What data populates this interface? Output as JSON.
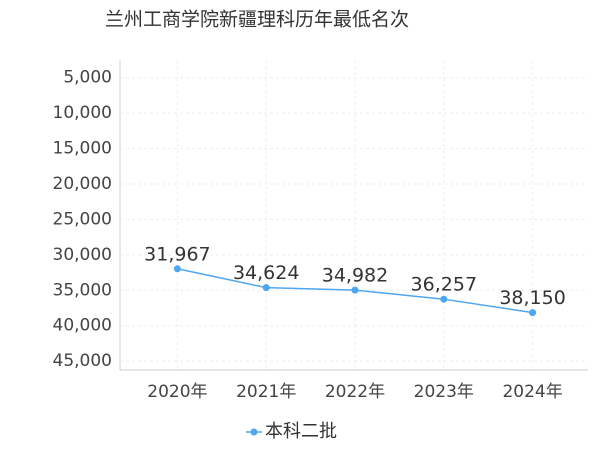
{
  "chart_data": {
    "type": "line",
    "title": "兰州工商学院新疆理科历年最低名次",
    "categories": [
      "2020年",
      "2021年",
      "2022年",
      "2023年",
      "2024年"
    ],
    "series": [
      {
        "name": "本科二批",
        "color": "#4da6f0",
        "values": [
          31967,
          34624,
          34982,
          36257,
          38150
        ],
        "value_labels": [
          "31,967",
          "34,624",
          "34,982",
          "36,257",
          "38,150"
        ]
      }
    ],
    "ylim": [
      2500,
      46250
    ],
    "y_inverted": true,
    "yticks": [
      {
        "value": 5000,
        "label": "5,000"
      },
      {
        "value": 10000,
        "label": "10,000"
      },
      {
        "value": 15000,
        "label": "15,000"
      },
      {
        "value": 20000,
        "label": "20,000"
      },
      {
        "value": 25000,
        "label": "25,000"
      },
      {
        "value": 30000,
        "label": "30,000"
      },
      {
        "value": 35000,
        "label": "35,000"
      },
      {
        "value": 40000,
        "label": "40,000"
      },
      {
        "value": 45000,
        "label": "45,000"
      }
    ],
    "grid": true,
    "legend": "bottom"
  }
}
